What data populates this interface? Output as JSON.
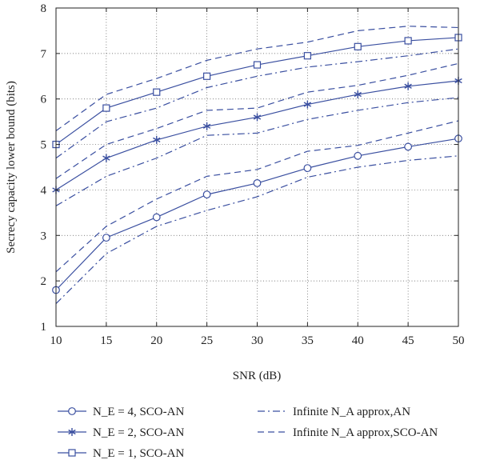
{
  "chart_data": {
    "type": "line",
    "xlabel": "SNR (dB)",
    "ylabel": "Secrecy capacity lower bound (bits)",
    "x": [
      10,
      15,
      20,
      25,
      30,
      35,
      40,
      45,
      50
    ],
    "xlim": [
      10,
      50
    ],
    "ylim": [
      1,
      8
    ],
    "xticks": [
      "10",
      "15",
      "20",
      "25",
      "30",
      "35",
      "40",
      "45",
      "50"
    ],
    "yticks": [
      "1",
      "2",
      "3",
      "4",
      "5",
      "6",
      "7",
      "8"
    ],
    "grid": "dotted",
    "legend_position": "bottom",
    "color": "#3a4fa0",
    "series": [
      {
        "name": "N_E = 4, SCO-AN",
        "style": "solid",
        "marker": "circle",
        "values": [
          1.8,
          2.95,
          3.4,
          3.9,
          4.15,
          4.48,
          4.75,
          4.95,
          5.13
        ]
      },
      {
        "name": "N_E = 2, SCO-AN",
        "style": "solid",
        "marker": "asterisk",
        "values": [
          4.0,
          4.7,
          5.1,
          5.4,
          5.6,
          5.88,
          6.1,
          6.28,
          6.4
        ]
      },
      {
        "name": "N_E = 1, SCO-AN",
        "style": "solid",
        "marker": "square",
        "values": [
          5.0,
          5.8,
          6.15,
          6.5,
          6.75,
          6.95,
          7.15,
          7.28,
          7.35
        ]
      },
      {
        "name": "Infinite N_A approx,AN",
        "style": "dashdot",
        "marker": "none",
        "values": [
          1.5,
          2.6,
          3.2,
          3.55,
          3.85,
          4.28,
          4.5,
          4.65,
          4.75
        ]
      },
      {
        "name": "Infinite N_A approx,SCO-AN",
        "style": "dashed",
        "marker": "none",
        "values": [
          2.2,
          3.2,
          3.8,
          4.3,
          4.45,
          4.85,
          4.98,
          5.25,
          5.52
        ]
      },
      {
        "name": "",
        "style": "dashdot",
        "marker": "none",
        "values": [
          3.65,
          4.3,
          4.7,
          5.2,
          5.25,
          5.55,
          5.75,
          5.92,
          6.03
        ]
      },
      {
        "name": "",
        "style": "dashed",
        "marker": "none",
        "values": [
          4.25,
          5.0,
          5.35,
          5.75,
          5.8,
          6.15,
          6.3,
          6.52,
          6.78
        ]
      },
      {
        "name": "",
        "style": "dashdot",
        "marker": "none",
        "values": [
          4.7,
          5.5,
          5.8,
          6.25,
          6.5,
          6.7,
          6.82,
          6.95,
          7.1
        ]
      },
      {
        "name": "",
        "style": "dashed",
        "marker": "none",
        "values": [
          5.3,
          6.1,
          6.45,
          6.85,
          7.1,
          7.25,
          7.5,
          7.6,
          7.57
        ]
      }
    ]
  }
}
